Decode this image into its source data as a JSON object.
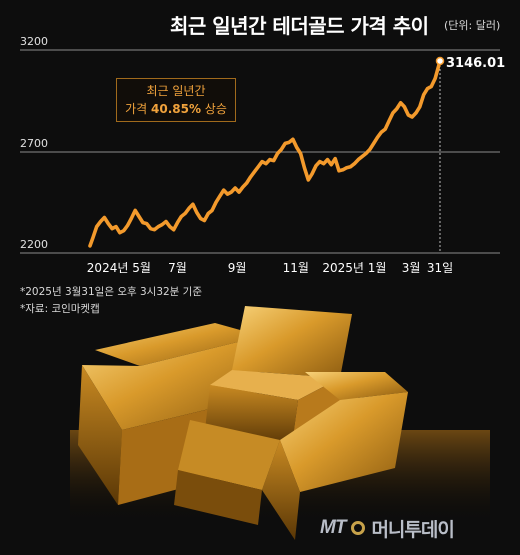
{
  "title": "최근 일년간 테더골드 가격 추이",
  "unit": "(단위: 달러)",
  "callout": {
    "line1": "최근 일년간",
    "line2_prefix": "가격 ",
    "line2_value": "40.85%",
    "line2_suffix": " 상승"
  },
  "last_value_label": "3146.01",
  "notes": [
    "*2025년 3월31일은 오후 3시32분 기준",
    "*자료: 코인마켓캡"
  ],
  "brand": {
    "mt": "MT",
    "name": "머니투데이"
  },
  "colors": {
    "background": "#0d0d0d",
    "line": "#f39a2c",
    "grid": "#8a8a8a",
    "callout_text": "#f0a23c",
    "gold": "#d99a2b"
  },
  "icons": [
    "gold-bars-image",
    "moneytoday-logo-icon"
  ],
  "chart_data": {
    "type": "line",
    "title": "최근 일년간 테더골드 가격 추이",
    "ylabel": "",
    "xlabel": "",
    "ylim": [
      2200,
      3200
    ],
    "yticks": [
      3200,
      2700,
      2200
    ],
    "grid": true,
    "x_tick_labels": [
      "2024년 5월",
      "7월",
      "9월",
      "11월",
      "2025년 1월",
      "3월",
      "31일"
    ],
    "x_tick_dates": [
      "2024-05-01",
      "2024-07-01",
      "2024-09-01",
      "2024-11-01",
      "2025-01-01",
      "2025-03-01",
      "2025-03-31"
    ],
    "series": [
      {
        "x": [
          "2024-04-01",
          "2024-04-04",
          "2024-04-08",
          "2024-04-12",
          "2024-04-16",
          "2024-04-20",
          "2024-04-24",
          "2024-04-28",
          "2024-05-02",
          "2024-05-06",
          "2024-05-10",
          "2024-05-14",
          "2024-05-18",
          "2024-05-22",
          "2024-05-26",
          "2024-05-30",
          "2024-06-03",
          "2024-06-07",
          "2024-06-11",
          "2024-06-15",
          "2024-06-19",
          "2024-06-23",
          "2024-06-27",
          "2024-07-01",
          "2024-07-05",
          "2024-07-09",
          "2024-07-13",
          "2024-07-17",
          "2024-07-21",
          "2024-07-25",
          "2024-07-29",
          "2024-08-02",
          "2024-08-06",
          "2024-08-10",
          "2024-08-14",
          "2024-08-18",
          "2024-08-22",
          "2024-08-26",
          "2024-08-30",
          "2024-09-03",
          "2024-09-07",
          "2024-09-11",
          "2024-09-15",
          "2024-09-19",
          "2024-09-23",
          "2024-09-27",
          "2024-10-01",
          "2024-10-05",
          "2024-10-09",
          "2024-10-13",
          "2024-10-17",
          "2024-10-21",
          "2024-10-25",
          "2024-10-29",
          "2024-11-02",
          "2024-11-06",
          "2024-11-10",
          "2024-11-14",
          "2024-11-18",
          "2024-11-22",
          "2024-11-26",
          "2024-11-30",
          "2024-12-04",
          "2024-12-08",
          "2024-12-12",
          "2024-12-16",
          "2024-12-20",
          "2024-12-24",
          "2024-12-28",
          "2025-01-01",
          "2025-01-05",
          "2025-01-09",
          "2025-01-13",
          "2025-01-17",
          "2025-01-21",
          "2025-01-25",
          "2025-01-29",
          "2025-02-02",
          "2025-02-06",
          "2025-02-10",
          "2025-02-14",
          "2025-02-18",
          "2025-02-22",
          "2025-02-26",
          "2025-03-02",
          "2025-03-06",
          "2025-03-10",
          "2025-03-14",
          "2025-03-18",
          "2025-03-22",
          "2025-03-26",
          "2025-03-31"
        ],
        "y": [
          2235,
          2275,
          2330,
          2355,
          2375,
          2345,
          2320,
          2330,
          2300,
          2310,
          2335,
          2370,
          2410,
          2380,
          2350,
          2345,
          2320,
          2315,
          2330,
          2340,
          2355,
          2330,
          2315,
          2350,
          2380,
          2395,
          2420,
          2440,
          2400,
          2370,
          2360,
          2395,
          2410,
          2450,
          2480,
          2510,
          2490,
          2500,
          2520,
          2500,
          2525,
          2545,
          2575,
          2600,
          2625,
          2650,
          2640,
          2660,
          2655,
          2690,
          2710,
          2740,
          2745,
          2760,
          2720,
          2690,
          2620,
          2560,
          2590,
          2630,
          2650,
          2640,
          2660,
          2635,
          2665,
          2605,
          2610,
          2620,
          2625,
          2640,
          2660,
          2675,
          2690,
          2710,
          2740,
          2770,
          2795,
          2810,
          2850,
          2890,
          2910,
          2940,
          2920,
          2880,
          2870,
          2890,
          2920,
          2980,
          3010,
          3020,
          3060,
          3146.01
        ]
      }
    ]
  }
}
